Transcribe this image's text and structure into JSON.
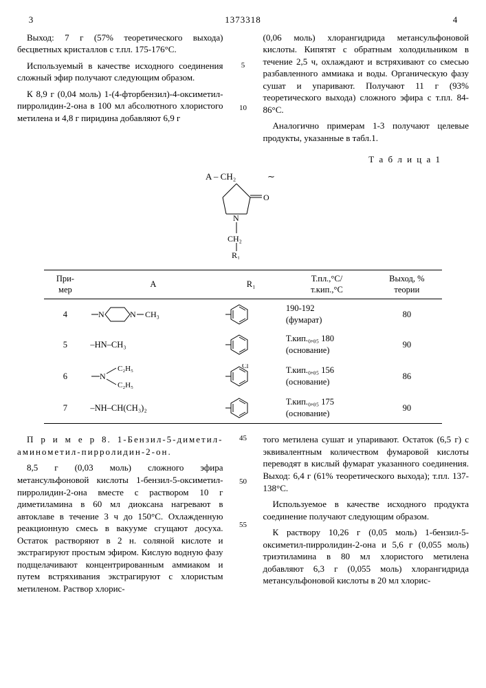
{
  "header": {
    "leftPage": "3",
    "docNumber": "1373318",
    "rightPage": "4"
  },
  "gutter": {
    "n5": "5",
    "n10": "10",
    "n45": "45",
    "n50": "50",
    "n55": "55"
  },
  "leftTop": {
    "p1": "Выход: 7 г (57% теоретического выхода) бесцветных кристаллов с т.пл. 175-176°С.",
    "p2": "Используемый в качестве исходного соединения сложный эфир получают следующим образом.",
    "p3": "К 8,9 г (0,04 моль) 1-(4-фторбензил)-4-оксиметил-пирролидин-2-она в 100 мл абсолютного хлористого метилена и 4,8 г пиридина добавляют 6,9 г"
  },
  "rightTop": {
    "p1": "(0,06 моль) хлорангидрида метансульфоновой кислоты. Кипятят с обратным холодильником в течение 2,5 ч, охлаждают и встряхивают со смесью разбавленного аммиака и воды. Органическую фазу сушат и упаривают. Получают 11 г (93% теоретического выхода) сложного эфира с т.пл. 84-86°С.",
    "p2": "Аналогично примерам 1-3 получают целевые продукты, указанные в табл.1."
  },
  "tableLabel": "Т а б л и ц а 1",
  "formula": {
    "topLabel": "A – CH₂",
    "tilde": "∼",
    "oLabel": "O",
    "nLabel": "N",
    "ch2": "CH₂",
    "r1": "R₁"
  },
  "table": {
    "headers": {
      "ex": "При-\nмер",
      "a": "A",
      "r": "R₁",
      "tp": "Т.пл.,°С/\nт.кип.,°С",
      "yield": "Выход, %\nтеории"
    },
    "rows": [
      {
        "n": "4",
        "a_kind": "piperazine",
        "a_text": "N—CH₃",
        "r_kind": "phenyl",
        "tp": "190-192\n(фумарат)",
        "y": "80"
      },
      {
        "n": "5",
        "a_kind": "text",
        "a_text": "–HN–CH₃",
        "r_kind": "phenyl",
        "tp": "Т.кип.₀,₀₅ 180\n(основание)",
        "y": "90"
      },
      {
        "n": "6",
        "a_kind": "diethyl",
        "a_text": "C₂H₅",
        "r_kind": "cl-phenyl",
        "tp": "Т.кип.₀,₀₅ 156\n(основание)",
        "y": "86"
      },
      {
        "n": "7",
        "a_kind": "text",
        "a_text": "–NH–CH(CH₃)₂",
        "r_kind": "phenyl",
        "tp": "Т.кип.₀,₀₅ 175\n(основание)",
        "y": "90"
      }
    ]
  },
  "leftBottom": {
    "p1title": "П р и м е р  8. 1-Бензил-5-диметил-аминометил-пирролидин-2-он.",
    "p2": "8,5 г (0,03 моль) сложного эфира метансульфоновой кислоты 1-бензил-5-оксиметил-пирролидин-2-она вместе с раствором 10 г диметиламина в 60 мл диоксана нагревают в автоклаве в течение 3 ч до 150°С. Охлажденную реакционную смесь в вакууме сгущают досуха. Остаток растворяют в 2 н. соляной кислоте и экстрагируют простым эфиром. Кислую водную фазу подщелачивают концентрированным аммиаком и путем встряхивания экстрагируют с хлористым метиленом. Раствор хлорис-"
  },
  "rightBottom": {
    "p1": "того метилена сушат и упаривают. Остаток (6,5 г) с эквивалентным количеством фумаровой кислоты переводят в кислый фумарат указанного соединения. Выход: 6,4 г (61% теоретического выхода); т.пл. 137-138°С.",
    "p2": "Используемое в качестве исходного продукта соединение получают следующим образом.",
    "p3": "К раствору 10,26 г (0,05 моль) 1-бензил-5-оксиметил-пирролидин-2-она и 5,6 г (0,055 моль) триэтиламина в 80 мл хлористого метилена добавляют 6,3 г (0,055 моль) хлорангидрида метансульфоновой кислоты в 20 мл хлорис-"
  }
}
